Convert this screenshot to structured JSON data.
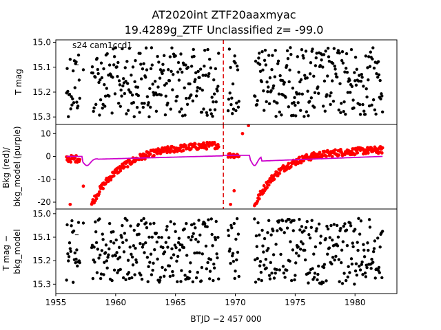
{
  "chart_data": {
    "type": "scatter",
    "title": [
      "AT2020int  ZTF20aaxmyac",
      "19.4289g_ZTF Unclassified z= -99.0"
    ],
    "annotation": "s24 cam1ccd1",
    "xlabel": "BTJD −2 457 000",
    "xlim": [
      1955.0,
      1983.5
    ],
    "x_ticks": [
      1955,
      1960,
      1965,
      1970,
      1975,
      1980
    ],
    "vline_x": 1969.0,
    "segments": [
      [
        1955.9,
        1957.0
      ],
      [
        1958.0,
        1968.6
      ],
      [
        1969.4,
        1970.3
      ],
      [
        1971.6,
        1982.3
      ]
    ],
    "colors": {
      "points": "#000000",
      "bkg": "#ff0000",
      "model": "#cc00cc",
      "vline": "#dd0000"
    },
    "panels": [
      {
        "ylabel": "T mag",
        "ylim": [
          15.33,
          14.99
        ],
        "y_ticks": [
          15.0,
          15.1,
          15.2,
          15.3
        ],
        "series": [
          {
            "values_min": 15.02,
            "values_max": 15.3
          }
        ]
      },
      {
        "ylabel": [
          "Bkg (red)/",
          "bkg_model (purple)"
        ],
        "ylim": [
          -23,
          14
        ],
        "y_ticks": [
          10,
          0,
          -10,
          -20
        ],
        "series": [
          {
            "values_min": -21,
            "values_max": 13.5
          },
          {
            "values_min": -4,
            "values_max": 1
          }
        ]
      },
      {
        "ylabel": [
          "T mag −",
          "bkg_model"
        ],
        "ylim": [
          15.34,
          14.98
        ],
        "y_ticks": [
          15.0,
          15.1,
          15.2,
          15.3
        ],
        "series": [
          {
            "values_min": 15.02,
            "values_max": 15.3
          }
        ]
      }
    ]
  }
}
